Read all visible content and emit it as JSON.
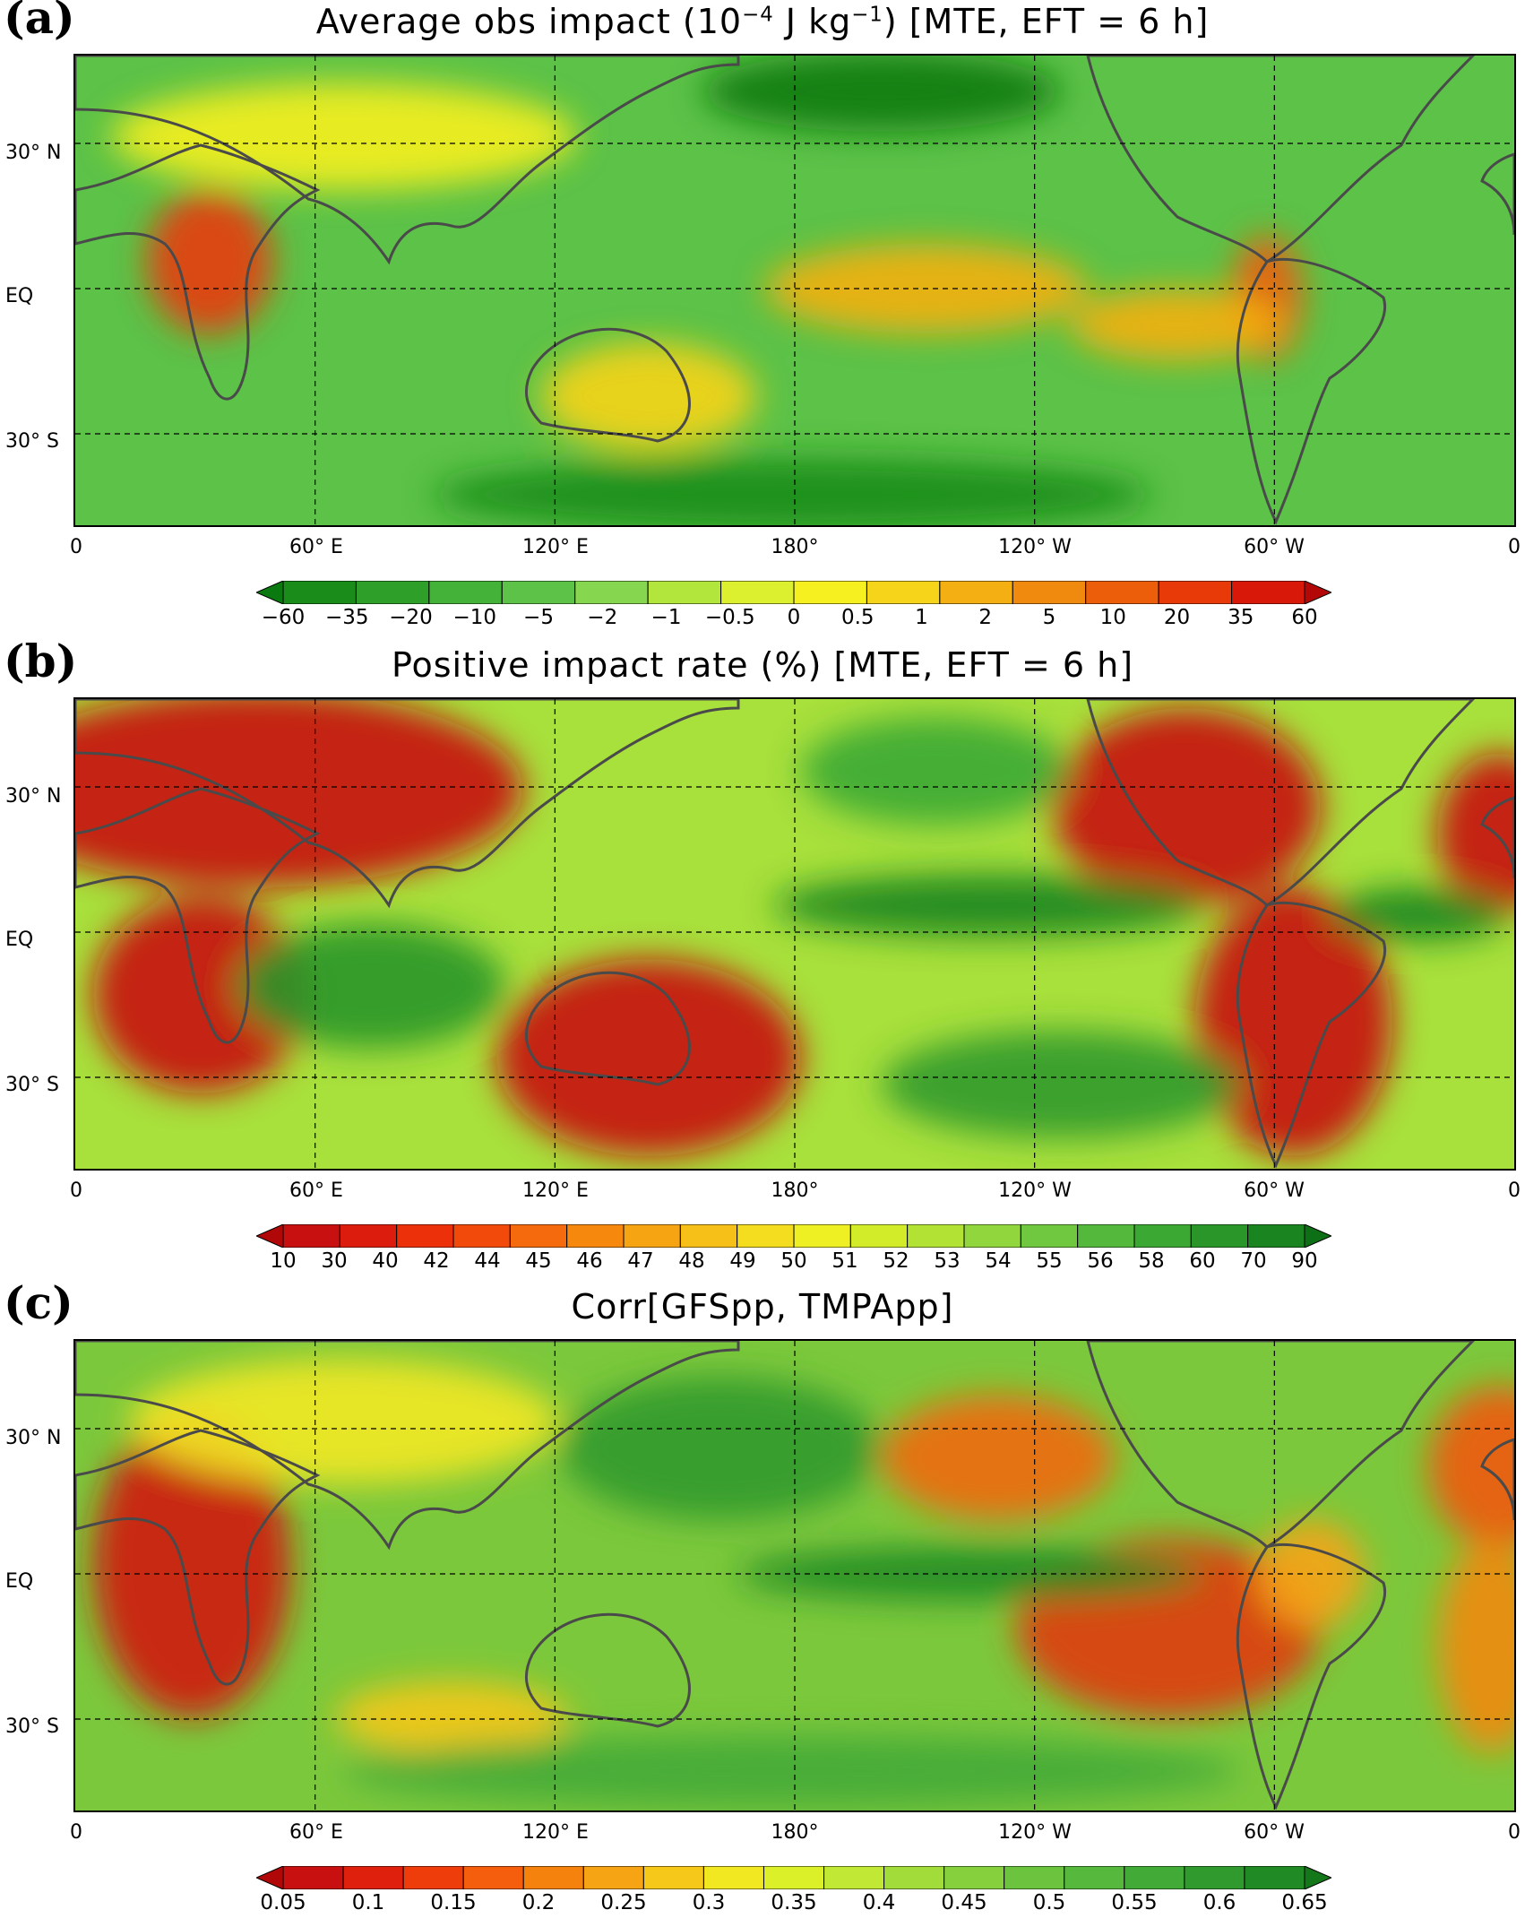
{
  "panels": [
    {
      "label": "(a)",
      "title_main": "Average obs impact (10",
      "title_exp": "−4",
      "title_mid": " J kg",
      "title_exp2": "−1",
      "title_tail": ") [MTE, EFT = 6 h]",
      "colorbar_ticks": [
        "−60",
        "−35",
        "−20",
        "−10",
        "−5",
        "−2",
        "−1",
        "−0.5",
        "0",
        "0.5",
        "1",
        "2",
        "5",
        "10",
        "20",
        "35",
        "60"
      ],
      "colorbar_colors": [
        "#0a7a10",
        "#1a8c1a",
        "#2ea02a",
        "#44b238",
        "#5cc248",
        "#86d650",
        "#b2e63c",
        "#dcf030",
        "#f6f020",
        "#f6d41a",
        "#f4b012",
        "#f08a0e",
        "#ec5e0a",
        "#e83a08",
        "#d81808",
        "#b40808"
      ],
      "blobs": [
        {
          "fill": "#e83a08"
        },
        {
          "fill": "#f4b012"
        },
        {
          "fill": "#f6f020"
        },
        {
          "fill": "#f6d41a"
        },
        {
          "fill": "#ec5e0a"
        },
        {
          "fill": "#0a7a10"
        },
        {
          "fill": "#f4b012"
        },
        {
          "fill": "#1a8c1a"
        }
      ],
      "base_color": "#5cc248"
    },
    {
      "label": "(b)",
      "title_text": "Positive impact rate (%) [MTE, EFT = 6 h]",
      "colorbar_ticks": [
        "10",
        "30",
        "40",
        "42",
        "44",
        "45",
        "46",
        "47",
        "48",
        "49",
        "50",
        "51",
        "52",
        "53",
        "54",
        "55",
        "56",
        "58",
        "60",
        "70",
        "90"
      ],
      "colorbar_colors": [
        "#b00808",
        "#c81010",
        "#dc1c0c",
        "#ec300a",
        "#f24a0a",
        "#f46a0c",
        "#f6880e",
        "#f6a412",
        "#f6c018",
        "#f4dc1e",
        "#eef024",
        "#d2ec2a",
        "#b2e234",
        "#90d63c",
        "#70c840",
        "#54b83c",
        "#3ca834",
        "#2a962a",
        "#1a8420",
        "#0e7016"
      ],
      "base_color": "#a8e03c"
    },
    {
      "label": "(c)",
      "title_text": "Corr[GFSpp, TMPApp]",
      "colorbar_ticks": [
        "0.05",
        "0.1",
        "0.15",
        "0.2",
        "0.25",
        "0.3",
        "0.35",
        "0.4",
        "0.45",
        "0.5",
        "0.55",
        "0.6",
        "0.65"
      ],
      "colorbar_colors": [
        "#b00808",
        "#c81010",
        "#de200c",
        "#ee3c0a",
        "#f45e0c",
        "#f6820e",
        "#f6a414",
        "#f6c81a",
        "#f2e822",
        "#dcf02a",
        "#c0e834",
        "#a2dc3a",
        "#86d03e",
        "#6cc43e",
        "#56b83c",
        "#42aa36",
        "#309a2e",
        "#208a24",
        "#14781a"
      ],
      "base_color": "#7cc83c"
    }
  ],
  "lat_labels": [
    "30° N",
    "EQ",
    "30° S"
  ],
  "lon_labels": [
    "0",
    "60° E",
    "120° E",
    "180°",
    "120° W",
    "60° W",
    "0"
  ]
}
